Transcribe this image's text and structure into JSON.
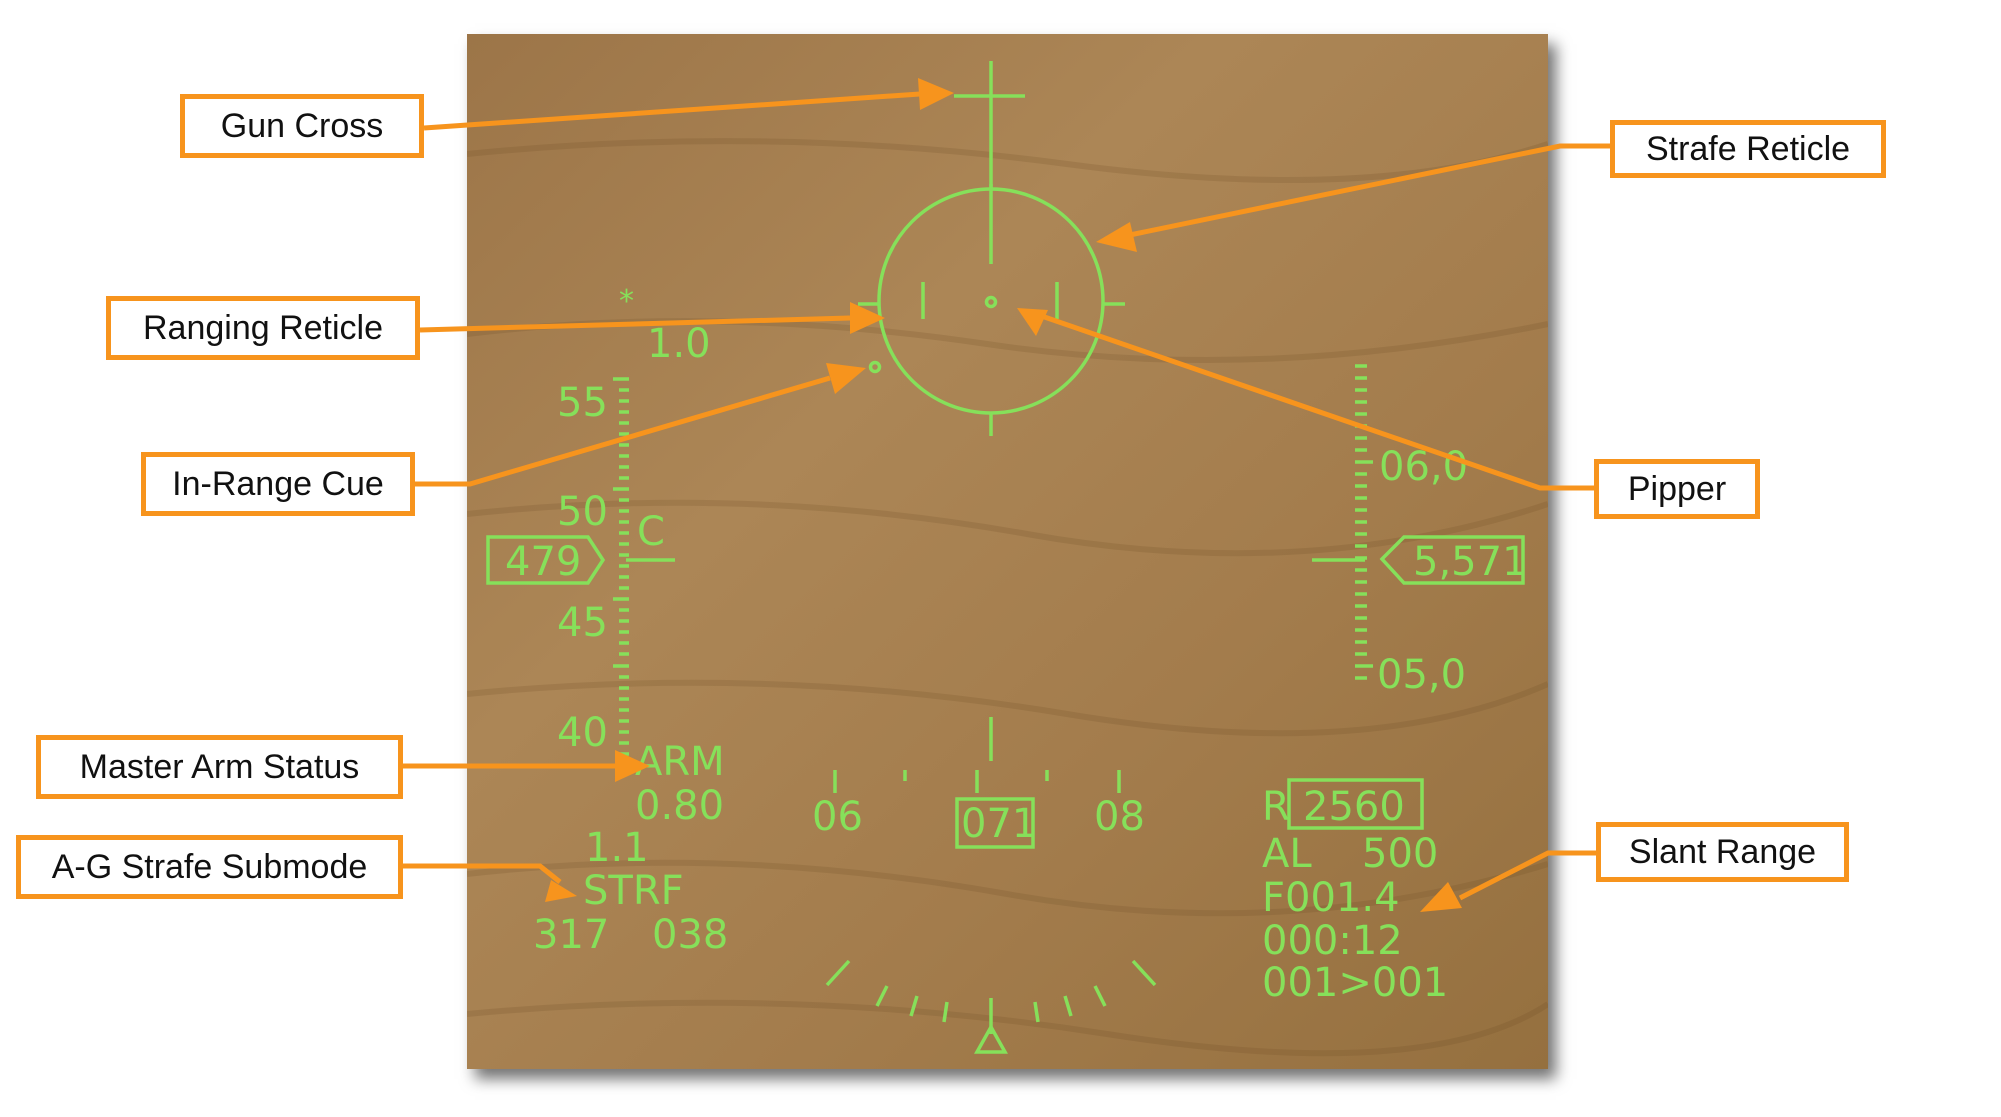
{
  "colors": {
    "hud_green": "#86e05a",
    "callout_orange": "#f7941d",
    "background_sand": "#a57e4f"
  },
  "callouts": {
    "gun_cross": "Gun Cross",
    "ranging_reticle": "Ranging Reticle",
    "in_range_cue": "In-Range Cue",
    "master_arm_status": "Master Arm Status",
    "ag_strafe_submode": "A-G Strafe Submode",
    "strafe_reticle": "Strafe Reticle",
    "pipper": "Pipper",
    "slant_range": "Slant Range"
  },
  "hud": {
    "airspeed_scale": {
      "star": "*",
      "top": "1.0",
      "ticks": [
        "55",
        "50",
        "45",
        "40"
      ],
      "c_marker": "C"
    },
    "airspeed_box": "479",
    "altitude_scale": {
      "ticks": [
        "06,0",
        "05,0"
      ]
    },
    "altitude_box": "5,571",
    "master_arm": "ARM",
    "mach": "0.80",
    "g_load": "1.1",
    "submode": "STRF",
    "bottom_left": {
      "a": "317",
      "b": "038"
    },
    "heading": {
      "left": "06",
      "center": "071",
      "right": "08"
    },
    "slant_range": {
      "prefix": "R",
      "value": "2560"
    },
    "al": {
      "label": "AL",
      "value": "500"
    },
    "f_line": "F001.4",
    "time_line": "000:12",
    "steer_line": "001>001"
  }
}
